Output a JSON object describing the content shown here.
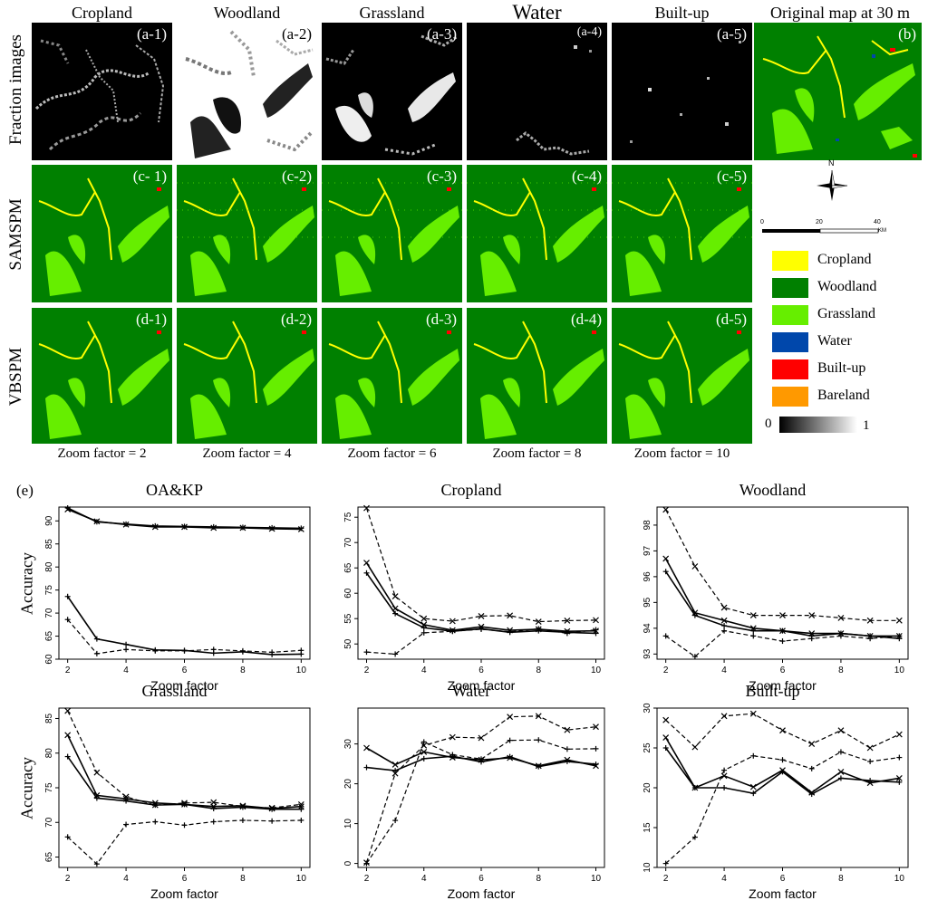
{
  "top_figure": {
    "columns": [
      {
        "title": "Cropland",
        "fraction_tag": "(a-1)",
        "samspm_tag": "(c- 1)",
        "vbspm_tag": "(d-1)",
        "zoom_label": "Zoom factor = 2"
      },
      {
        "title": "Woodland",
        "fraction_tag": "(a-2)",
        "samspm_tag": "(c-2)",
        "vbspm_tag": "(d-2)",
        "zoom_label": "Zoom factor = 4"
      },
      {
        "title": "Grassland",
        "fraction_tag": "(a-3)",
        "samspm_tag": "(c-3)",
        "vbspm_tag": "(d-3)",
        "zoom_label": "Zoom factor = 6"
      },
      {
        "title": "Water",
        "fraction_tag": "(a-4)",
        "samspm_tag": "(c-4)",
        "vbspm_tag": "(d-4)",
        "zoom_label": "Zoom factor = 8"
      },
      {
        "title": "Built-up",
        "fraction_tag": "(a-5)",
        "samspm_tag": "(c-5)",
        "vbspm_tag": "(d-5)",
        "zoom_label": "Zoom factor = 10"
      }
    ],
    "original_map": {
      "title": "Original map at 30 m",
      "tag": "(b)"
    },
    "row_labels": {
      "fraction": "Fraction images",
      "samspm": "SAMSPM",
      "vbspm": "VBSPM"
    },
    "north_arrow": {
      "label": "N"
    },
    "scale_bar": {
      "ticks": [
        "0",
        "20",
        "40"
      ],
      "unit": "KM"
    },
    "legend": [
      {
        "label": "Cropland",
        "color": "#ffff00"
      },
      {
        "label": "Woodland",
        "color": "#008000"
      },
      {
        "label": "Grassland",
        "color": "#66ee00"
      },
      {
        "label": "Water",
        "color": "#0047ab"
      },
      {
        "label": "Built-up",
        "color": "#ff0000"
      },
      {
        "label": "Bareland",
        "color": "#ff9900"
      }
    ],
    "gradient": {
      "min": "0",
      "max": "1"
    }
  },
  "panel_label": "(e)",
  "chart_data": [
    {
      "type": "line",
      "title": "OA&KP",
      "xlabel": "Zoom factor",
      "ylabel": "Accuracy",
      "x": [
        2,
        3,
        4,
        5,
        6,
        7,
        8,
        9,
        10
      ],
      "ylim": [
        60,
        93
      ],
      "yticks": [
        60,
        65,
        70,
        75,
        80,
        85,
        90
      ],
      "xticks": [
        2,
        4,
        6,
        8,
        10
      ],
      "series": [
        {
          "style": "solid",
          "marker": "+",
          "values": [
            92.8,
            89.8,
            89.3,
            88.9,
            88.8,
            88.7,
            88.6,
            88.5,
            88.4
          ]
        },
        {
          "style": "solid",
          "marker": "x",
          "values": [
            92.5,
            89.9,
            89.2,
            88.7,
            88.7,
            88.5,
            88.5,
            88.3,
            88.2
          ]
        },
        {
          "style": "solid",
          "marker": "+",
          "values": [
            73.6,
            64.4,
            63.2,
            62.0,
            61.9,
            61.3,
            61.6,
            61.0,
            61.1
          ]
        },
        {
          "style": "dashed",
          "marker": "+",
          "values": [
            68.6,
            61.2,
            62.1,
            61.8,
            61.8,
            62.1,
            61.8,
            61.5,
            61.9
          ]
        }
      ]
    },
    {
      "type": "line",
      "title": "Cropland",
      "xlabel": "Zoom factor",
      "ylabel": "",
      "x": [
        2,
        3,
        4,
        5,
        6,
        7,
        8,
        9,
        10
      ],
      "ylim": [
        47,
        77
      ],
      "yticks": [
        50,
        55,
        60,
        65,
        70,
        75
      ],
      "xticks": [
        2,
        4,
        6,
        8,
        10
      ],
      "series": [
        {
          "style": "dashed",
          "marker": "x",
          "values": [
            76.8,
            59.4,
            55.0,
            54.5,
            55.5,
            55.6,
            54.4,
            54.6,
            54.7
          ]
        },
        {
          "style": "solid",
          "marker": "x",
          "values": [
            66.0,
            57.0,
            53.8,
            52.7,
            53.4,
            52.7,
            52.9,
            52.5,
            52.6
          ]
        },
        {
          "style": "solid",
          "marker": "+",
          "values": [
            64.0,
            56.0,
            53.2,
            52.5,
            53.0,
            52.3,
            52.6,
            52.3,
            52.1
          ]
        },
        {
          "style": "dashed",
          "marker": "+",
          "values": [
            48.4,
            48.0,
            52.2,
            52.5,
            52.9,
            52.4,
            53.0,
            52.1,
            52.8
          ]
        }
      ]
    },
    {
      "type": "line",
      "title": "Woodland",
      "xlabel": "Zoom factor",
      "ylabel": "",
      "x": [
        2,
        3,
        4,
        5,
        6,
        7,
        8,
        9,
        10
      ],
      "ylim": [
        92.8,
        98.7
      ],
      "yticks": [
        93,
        94,
        95,
        96,
        97,
        98
      ],
      "xticks": [
        2,
        4,
        6,
        8,
        10
      ],
      "series": [
        {
          "style": "dashed",
          "marker": "x",
          "values": [
            98.6,
            96.4,
            94.8,
            94.5,
            94.5,
            94.5,
            94.4,
            94.3,
            94.3
          ]
        },
        {
          "style": "solid",
          "marker": "x",
          "values": [
            96.7,
            94.6,
            94.3,
            94.0,
            93.9,
            93.8,
            93.8,
            93.7,
            93.7
          ]
        },
        {
          "style": "solid",
          "marker": "+",
          "values": [
            96.2,
            94.5,
            94.1,
            93.9,
            93.9,
            93.7,
            93.8,
            93.7,
            93.6
          ]
        },
        {
          "style": "dashed",
          "marker": "+",
          "values": [
            93.7,
            92.9,
            93.9,
            93.7,
            93.5,
            93.6,
            93.7,
            93.6,
            93.7
          ]
        }
      ]
    },
    {
      "type": "line",
      "title": "Grassland",
      "xlabel": "Zoom factor",
      "ylabel": "Accuracy",
      "x": [
        2,
        3,
        4,
        5,
        6,
        7,
        8,
        9,
        10
      ],
      "ylim": [
        63.5,
        86.5
      ],
      "yticks": [
        65,
        70,
        75,
        80,
        85
      ],
      "xticks": [
        2,
        4,
        6,
        8,
        10
      ],
      "series": [
        {
          "style": "dashed",
          "marker": "x",
          "values": [
            86.1,
            77.2,
            73.7,
            72.5,
            72.8,
            72.9,
            72.3,
            72.1,
            72.6
          ]
        },
        {
          "style": "solid",
          "marker": "x",
          "values": [
            82.6,
            73.9,
            73.4,
            72.8,
            72.6,
            72.3,
            72.4,
            72.0,
            72.3
          ]
        },
        {
          "style": "solid",
          "marker": "+",
          "values": [
            79.5,
            73.5,
            73.1,
            72.5,
            72.6,
            72.0,
            72.2,
            71.9,
            71.9
          ]
        },
        {
          "style": "dashed",
          "marker": "+",
          "values": [
            67.9,
            64.0,
            69.7,
            70.1,
            69.6,
            70.1,
            70.3,
            70.2,
            70.3
          ]
        }
      ]
    },
    {
      "type": "line",
      "title": "Water",
      "xlabel": "Zoom factor",
      "ylabel": "",
      "x": [
        2,
        3,
        4,
        5,
        6,
        7,
        8,
        9,
        10
      ],
      "ylim": [
        -1,
        39
      ],
      "yticks": [
        0,
        10,
        20,
        30
      ],
      "xticks": [
        2,
        4,
        6,
        8,
        10
      ],
      "series": [
        {
          "style": "dashed",
          "marker": "x",
          "values": [
            0.2,
            22.6,
            29.6,
            31.7,
            31.5,
            36.8,
            37.0,
            33.5,
            34.3
          ]
        },
        {
          "style": "dashed",
          "marker": "+",
          "values": [
            0.0,
            10.8,
            30.5,
            27.3,
            26.2,
            30.9,
            31.0,
            28.7,
            28.8
          ]
        },
        {
          "style": "solid",
          "marker": "x",
          "values": [
            29.0,
            24.8,
            28.0,
            26.6,
            26.0,
            26.5,
            24.5,
            26.0,
            24.5
          ]
        },
        {
          "style": "solid",
          "marker": "+",
          "values": [
            24.1,
            23.3,
            26.3,
            26.9,
            25.5,
            26.8,
            24.3,
            25.6,
            24.9
          ]
        }
      ]
    },
    {
      "type": "line",
      "title": "Built-up",
      "xlabel": "Zoom factor",
      "ylabel": "",
      "x": [
        2,
        3,
        4,
        5,
        6,
        7,
        8,
        9,
        10
      ],
      "ylim": [
        10,
        30
      ],
      "yticks": [
        10,
        15,
        20,
        25,
        30
      ],
      "xticks": [
        2,
        4,
        6,
        8,
        10
      ],
      "series": [
        {
          "style": "dashed",
          "marker": "x",
          "values": [
            28.5,
            25.1,
            29.0,
            29.3,
            27.2,
            25.5,
            27.2,
            25.0,
            26.7
          ]
        },
        {
          "style": "dashed",
          "marker": "+",
          "values": [
            10.5,
            13.8,
            22.2,
            24.0,
            23.5,
            22.4,
            24.5,
            23.3,
            23.8
          ]
        },
        {
          "style": "solid",
          "marker": "x",
          "values": [
            26.3,
            20.0,
            21.5,
            20.1,
            22.2,
            19.4,
            22.0,
            20.6,
            21.2
          ]
        },
        {
          "style": "solid",
          "marker": "+",
          "values": [
            25.0,
            20.0,
            20.0,
            19.3,
            22.0,
            19.2,
            21.2,
            20.9,
            20.7
          ]
        }
      ]
    }
  ]
}
